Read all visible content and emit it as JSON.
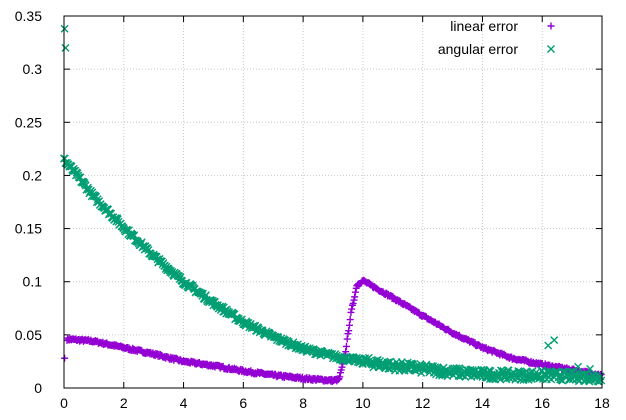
{
  "chart_data": {
    "type": "scatter",
    "xlim": [
      0,
      18
    ],
    "ylim": [
      0,
      0.35
    ],
    "x_ticks": [
      0,
      2,
      4,
      6,
      8,
      10,
      12,
      14,
      16,
      18
    ],
    "y_ticks": [
      0,
      0.05,
      0.1,
      0.15,
      0.2,
      0.25,
      0.3,
      0.35
    ],
    "y_tick_labels": [
      "0",
      "0.05",
      "0.1",
      "0.15",
      "0.2",
      "0.25",
      "0.3",
      "0.35"
    ],
    "legend_position": "top-right",
    "series": [
      {
        "name": "linear error",
        "marker": "plus",
        "color": "#9400D3",
        "outliers": [
          [
            0.02,
            0.028
          ]
        ],
        "trend": [
          [
            0.1,
            0.046
          ],
          [
            1,
            0.044
          ],
          [
            2,
            0.038
          ],
          [
            3,
            0.032
          ],
          [
            4,
            0.025
          ],
          [
            5,
            0.021
          ],
          [
            6,
            0.016
          ],
          [
            7,
            0.012
          ],
          [
            8,
            0.009
          ],
          [
            9,
            0.007
          ],
          [
            9.2,
            0.008
          ],
          [
            9.4,
            0.03
          ],
          [
            9.6,
            0.07
          ],
          [
            9.8,
            0.097
          ],
          [
            10,
            0.101
          ],
          [
            11,
            0.085
          ],
          [
            12,
            0.068
          ],
          [
            13,
            0.052
          ],
          [
            14,
            0.038
          ],
          [
            15,
            0.028
          ],
          [
            16,
            0.022
          ],
          [
            17,
            0.017
          ],
          [
            18,
            0.012
          ]
        ]
      },
      {
        "name": "angular error",
        "marker": "cross",
        "color": "#009E73",
        "outliers": [
          [
            0.02,
            0.338
          ],
          [
            0.05,
            0.32
          ]
        ],
        "trend": [
          [
            0,
            0.215
          ],
          [
            0.5,
            0.198
          ],
          [
            1,
            0.18
          ],
          [
            2,
            0.151
          ],
          [
            3,
            0.124
          ],
          [
            4,
            0.1
          ],
          [
            5,
            0.08
          ],
          [
            6,
            0.062
          ],
          [
            7,
            0.048
          ],
          [
            8,
            0.037
          ],
          [
            9,
            0.03
          ],
          [
            10,
            0.025
          ],
          [
            11,
            0.021
          ],
          [
            12,
            0.018
          ],
          [
            13,
            0.015
          ],
          [
            14,
            0.013
          ],
          [
            15,
            0.012
          ],
          [
            16,
            0.012
          ],
          [
            17,
            0.011
          ],
          [
            18,
            0.01
          ]
        ],
        "bumps": [
          [
            16.2,
            0.04
          ],
          [
            16.4,
            0.045
          ],
          [
            17.2,
            0.02
          ],
          [
            17.6,
            0.018
          ]
        ]
      }
    ]
  }
}
